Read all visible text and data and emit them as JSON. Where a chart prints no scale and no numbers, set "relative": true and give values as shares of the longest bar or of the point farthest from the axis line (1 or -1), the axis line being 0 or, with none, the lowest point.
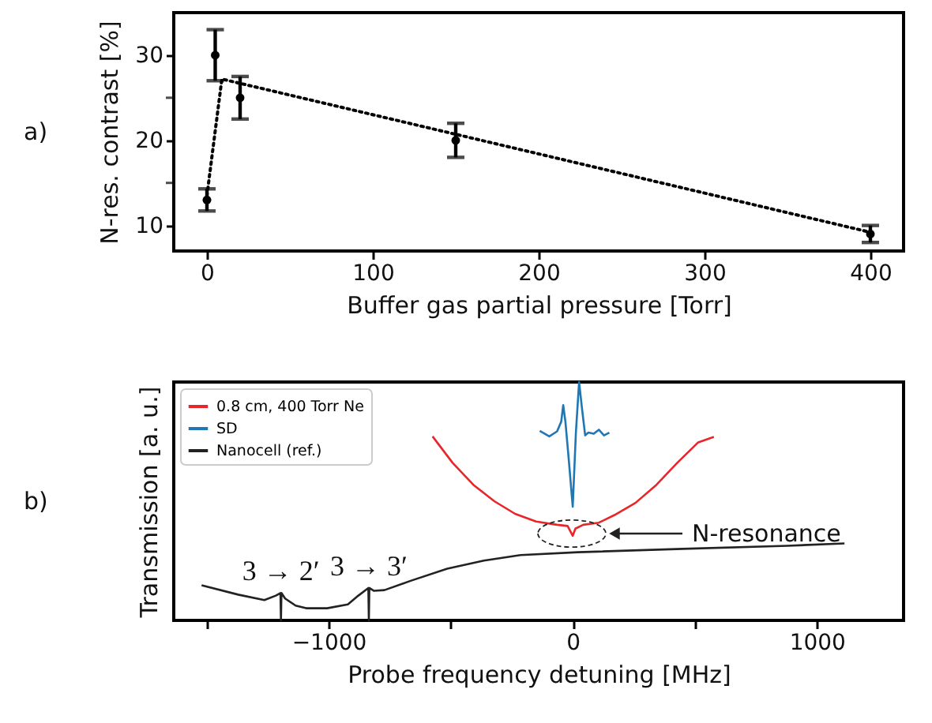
{
  "chart_data": [
    {
      "type": "scatter",
      "xlabel": "Buffer gas partial pressure [Torr]",
      "ylabel": "N-res. contrast [%]",
      "annotations": [
        "a)"
      ],
      "xlim": [
        -20,
        420
      ],
      "ylim": [
        7,
        35
      ],
      "xticks": [
        0,
        100,
        200,
        300,
        400
      ],
      "yticks": [
        10,
        {
          "value": 15,
          "label": null
        },
        20,
        {
          "value": 25,
          "label": null
        },
        30
      ],
      "series": [
        {
          "marker": "circle",
          "color": "#000000",
          "x": [
            0,
            5,
            20,
            150,
            400
          ],
          "values": [
            13,
            30,
            25,
            20,
            9
          ],
          "errors": [
            1.3,
            3,
            2.5,
            2,
            1
          ]
        },
        {
          "type": "line",
          "line_style": "dotted",
          "color": "#000000",
          "x": [
            0,
            9,
            400
          ],
          "values": [
            13.5,
            27.2,
            9.2
          ]
        }
      ]
    },
    {
      "type": "line",
      "relative": true,
      "xlabel": "Probe frequency detuning [MHz]",
      "ylabel": "Transmission [a. u.]",
      "legend": "top left",
      "annotations": [
        "b)",
        {
          "text": "3 → 2′",
          "x": -1195,
          "y": 0.115
        },
        {
          "text": "3 → 3′",
          "x": -835,
          "y": 0.136
        },
        "N-resonance"
      ],
      "xlim": [
        -1634,
        1355
      ],
      "xticks": [
        {
          "value": -1500,
          "label": null
        },
        {
          "value": -1000,
          "label": "−1000"
        },
        {
          "value": -500,
          "label": null
        },
        0,
        {
          "value": 500,
          "label": null
        },
        1000
      ],
      "series": [
        {
          "name": "0.8 cm, 400 Torr Ne",
          "color": "#e8262a",
          "x": [
            -574,
            -492,
            -407,
            -321,
            -236,
            -150,
            -64,
            -21,
            0,
            11,
            43,
            107,
            171,
            257,
            343,
            428,
            514,
            578
          ],
          "values": [
            0.772,
            0.661,
            0.569,
            0.5,
            0.447,
            0.415,
            0.401,
            0.396,
            0.355,
            0.385,
            0.401,
            0.41,
            0.442,
            0.493,
            0.569,
            0.661,
            0.747,
            0.77
          ],
          "line_style": "solid"
        },
        {
          "name": "SD",
          "color": "#1f77b4",
          "x": [
            -135,
            -96,
            -64,
            -47,
            -39,
            -30,
            -17,
            0,
            13,
            26,
            39,
            51,
            64,
            86,
            107,
            128,
            150
          ],
          "values": [
            0.795,
            0.772,
            0.793,
            0.834,
            0.903,
            0.834,
            0.684,
            0.477,
            0.788,
            1,
            0.88,
            0.776,
            0.788,
            0.783,
            0.8,
            0.776,
            0.788
          ]
        },
        {
          "name": "Nanocell (ref.)",
          "color": "#222222",
          "x": [
            -1520,
            -1370,
            -1263,
            -1216,
            -1197,
            -1195,
            -1193,
            -1178,
            -1135,
            -1092,
            -1006,
            -921,
            -878,
            -837,
            -835,
            -833,
            -814,
            -771,
            -664,
            -514,
            -364,
            -214,
            21,
            450,
            878,
            1113
          ],
          "values": [
            0.147,
            0.108,
            0.085,
            0.104,
            0.115,
            0,
            0.115,
            0.092,
            0.062,
            0.051,
            0.051,
            0.067,
            0.104,
            0.136,
            0,
            0.136,
            0.124,
            0.127,
            0.166,
            0.217,
            0.251,
            0.274,
            0.286,
            0.3,
            0.313,
            0.323
          ]
        }
      ]
    }
  ]
}
